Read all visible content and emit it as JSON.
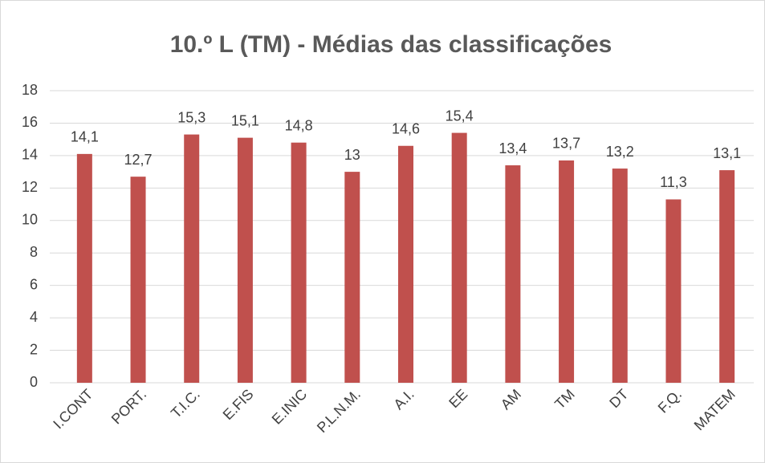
{
  "chart_data": {
    "type": "bar",
    "title": "10.º L (TM) - Médias das classificações",
    "categories": [
      "I.CONT",
      "PORT.",
      "T.I.C.",
      "E.FIS",
      "E.INIC",
      "P.L.N.M.",
      "A.I.",
      "EE",
      "AM",
      "TM",
      "DT",
      "F.Q.",
      "MATEM"
    ],
    "values": [
      14.1,
      12.7,
      15.3,
      15.1,
      14.8,
      13,
      14.6,
      15.4,
      13.4,
      13.7,
      13.2,
      11.3,
      13.1
    ],
    "value_labels": [
      "14,1",
      "12,7",
      "15,3",
      "15,1",
      "14,8",
      "13",
      "14,6",
      "15,4",
      "13,4",
      "13,7",
      "13,2",
      "11,3",
      "13,1"
    ],
    "color": "#c0504d",
    "ylim": [
      0,
      18
    ],
    "yticks": [
      0,
      2,
      4,
      6,
      8,
      10,
      12,
      14,
      16,
      18
    ],
    "grid": true
  }
}
